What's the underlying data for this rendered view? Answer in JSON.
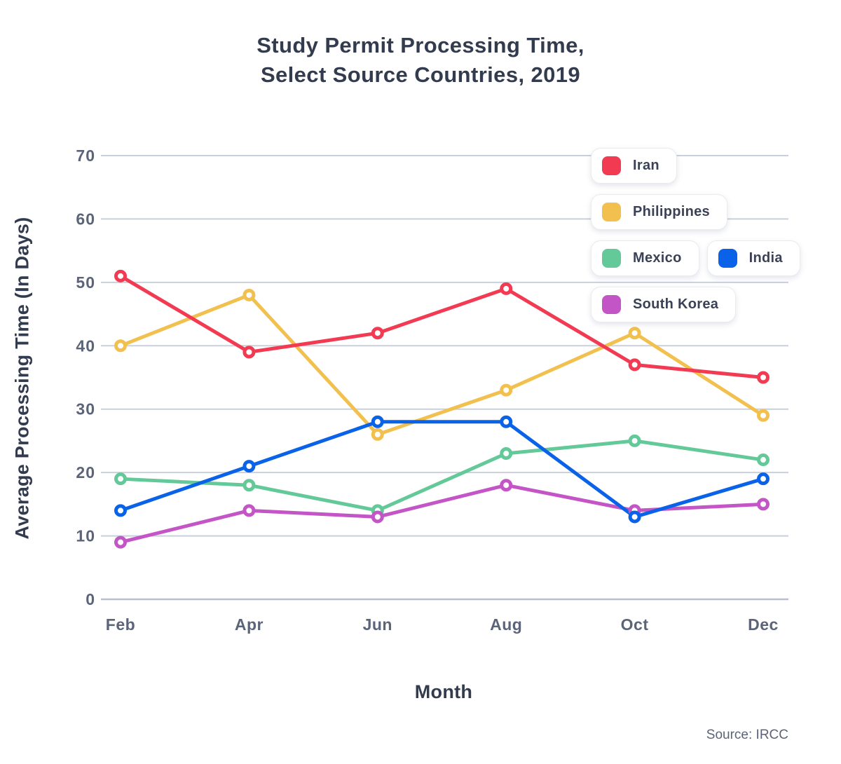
{
  "title": {
    "line1": "Study Permit Processing Time,",
    "line2": "Select Source Countries, 2019"
  },
  "footer": {
    "source": "Source: IRCC"
  },
  "chart_data": {
    "type": "line",
    "title": "Study Permit Processing Time, Select Source Countries, 2019",
    "xlabel": "Month",
    "ylabel": "Average Processing Time (In Days)",
    "categories": [
      "Feb",
      "Apr",
      "Jun",
      "Aug",
      "Oct",
      "Dec"
    ],
    "y_ticks": [
      0,
      10,
      20,
      30,
      40,
      50,
      60,
      70
    ],
    "ylim": [
      0,
      70
    ],
    "grid": true,
    "legend_position": "top-right",
    "series": [
      {
        "name": "Iran",
        "color": "#F23B52",
        "values": [
          51,
          39,
          42,
          49,
          37,
          35
        ]
      },
      {
        "name": "Philippines",
        "color": "#F2C04E",
        "values": [
          40,
          48,
          26,
          33,
          42,
          29
        ]
      },
      {
        "name": "Mexico",
        "color": "#63C998",
        "values": [
          19,
          18,
          14,
          23,
          25,
          22
        ]
      },
      {
        "name": "India",
        "color": "#0A62E8",
        "values": [
          14,
          21,
          28,
          28,
          13,
          19
        ]
      },
      {
        "name": "South Korea",
        "color": "#C455C7",
        "values": [
          9,
          14,
          13,
          18,
          14,
          15
        ]
      }
    ],
    "draw_order": [
      "Philippines",
      "Mexico",
      "South Korea",
      "India",
      "Iran"
    ],
    "style": {
      "grid_color": "#CACFDC",
      "baseline_color": "#B9BFCC",
      "tick_label_color": "#5B6478",
      "line_width": 5,
      "marker_radius": 6.5,
      "marker_stroke_width": 5,
      "marker_fill": "#FFFFFF"
    }
  }
}
